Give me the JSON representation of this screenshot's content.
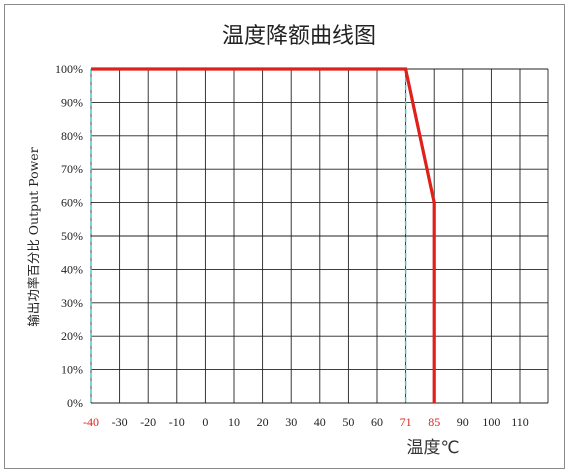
{
  "chart_data": {
    "type": "line",
    "title": "温度降额曲线图",
    "xlabel": "温度℃",
    "ylabel": "输出功率百分比 Output Power",
    "x_ticks": [
      -40,
      -30,
      -20,
      -10,
      0,
      10,
      20,
      30,
      40,
      50,
      60,
      71,
      85,
      90,
      100,
      110
    ],
    "x_tick_labels": [
      "-40",
      "-30",
      "-20",
      "-10",
      "0",
      "10",
      "20",
      "30",
      "40",
      "50",
      "60",
      "71",
      "85",
      "90",
      "100",
      "110"
    ],
    "highlight_ticks": [
      "-40",
      "71",
      "85"
    ],
    "y_ticks": [
      0,
      10,
      20,
      30,
      40,
      50,
      60,
      70,
      80,
      90,
      100
    ],
    "y_tick_labels": [
      "0%",
      "10%",
      "20%",
      "30%",
      "40%",
      "50%",
      "60%",
      "70%",
      "80%",
      "90%",
      "100%"
    ],
    "xlim": [
      -40,
      110
    ],
    "ylim": [
      0,
      100
    ],
    "grid": true,
    "series": [
      {
        "x": [
          -40,
          71,
          85,
          85
        ],
        "y": [
          100,
          100,
          60,
          0
        ],
        "color": "#e0201a"
      }
    ],
    "reference_lines_x": [
      -40,
      71
    ],
    "reference_color": "#35c7d6"
  }
}
